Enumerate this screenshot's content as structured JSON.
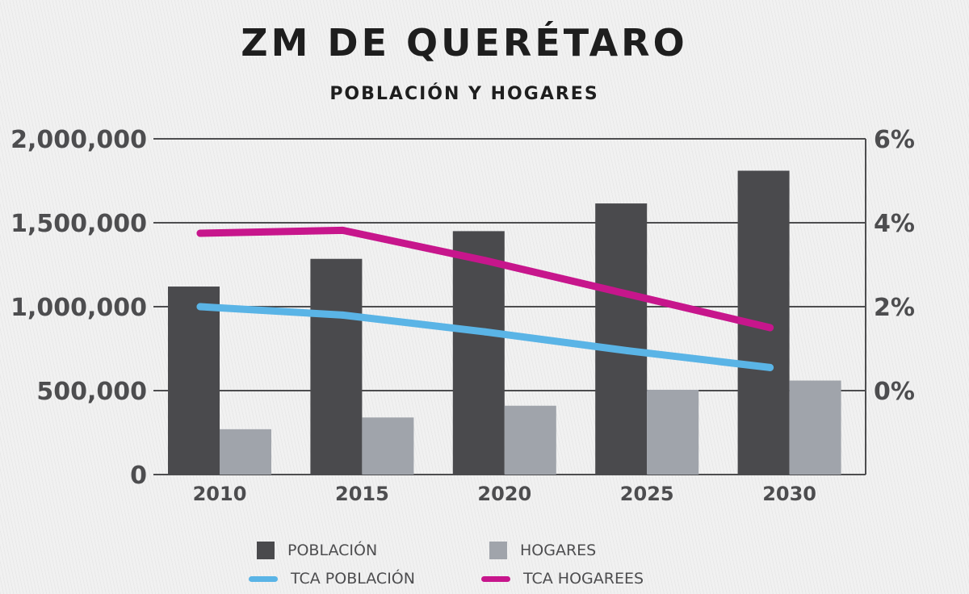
{
  "title": "ZM DE QUERÉTARO",
  "subtitle": "POBLACIÓN Y HOGARES",
  "colors": {
    "poblacion": "#4a4a4d",
    "hogares": "#a0a4ab",
    "tca_poblacion": "#5ab4e6",
    "tca_hogares": "#c7168c",
    "grid": "#4d4d4f",
    "text": "#4d4d4f"
  },
  "legend": {
    "poblacion": "POBLACIÓN",
    "hogares": "HOGARES",
    "tca_poblacion": "TCA POBLACIÓN",
    "tca_hogares": "TCA HOGAREES"
  },
  "chart_data": {
    "type": "bar",
    "title": "ZM DE QUERÉTARO",
    "subtitle": "POBLACIÓN Y HOGARES",
    "categories": [
      "2010",
      "2015",
      "2020",
      "2025",
      "2030"
    ],
    "y_ticks": [
      "0",
      "500,000",
      "1,000,000",
      "1,500,000",
      "2,000,000"
    ],
    "ylim": [
      0,
      2000000
    ],
    "y2_ticks": [
      "0%",
      "2%",
      "4%",
      "6%"
    ],
    "y2lim": [
      -2,
      6
    ],
    "grid": true,
    "legend_position": "bottom",
    "series": [
      {
        "name": "POBLACIÓN",
        "type": "bar",
        "axis": "left",
        "values": [
          1120000,
          1285000,
          1450000,
          1615000,
          1810000
        ]
      },
      {
        "name": "HOGARES",
        "type": "bar",
        "axis": "left",
        "values": [
          270000,
          340000,
          410000,
          505000,
          560000
        ]
      },
      {
        "name": "TCA POBLACIÓN",
        "type": "line",
        "axis": "right",
        "values": [
          2.0,
          1.8,
          1.4,
          0.95,
          0.55
        ]
      },
      {
        "name": "TCA HOGAREES",
        "type": "line",
        "axis": "right",
        "values": [
          3.75,
          3.82,
          3.1,
          2.3,
          1.5
        ]
      }
    ]
  }
}
